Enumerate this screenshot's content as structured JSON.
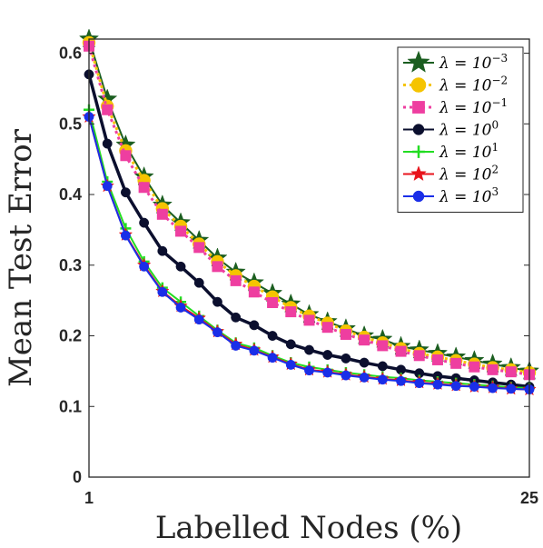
{
  "chart_data": {
    "type": "line",
    "xlabel": "Labelled Nodes (%)",
    "ylabel": "Mean Test Error",
    "xlim": [
      1,
      25
    ],
    "ylim": [
      0,
      0.62
    ],
    "xticks": [
      "1",
      "25"
    ],
    "yticks": [
      "0",
      "0.1",
      "0.2",
      "0.3",
      "0.4",
      "0.5",
      "0.6"
    ],
    "ytick_values": [
      0,
      0.1,
      0.2,
      0.3,
      0.4,
      0.5,
      0.6
    ],
    "x": [
      1,
      2,
      3,
      4,
      5,
      6,
      7,
      8,
      9,
      10,
      11,
      12,
      13,
      14,
      15,
      16,
      17,
      18,
      19,
      20,
      21,
      22,
      23,
      24,
      25
    ],
    "legend_position": "top-right",
    "series": [
      {
        "name": "λ = 10^-3",
        "label_base": "λ = 10",
        "label_exp": "−3",
        "color": "#1b5e20",
        "marker": "star",
        "line": "solid",
        "values": [
          0.62,
          0.535,
          0.47,
          0.425,
          0.385,
          0.36,
          0.335,
          0.31,
          0.29,
          0.275,
          0.26,
          0.245,
          0.23,
          0.22,
          0.21,
          0.2,
          0.195,
          0.185,
          0.18,
          0.175,
          0.17,
          0.165,
          0.16,
          0.155,
          0.15
        ]
      },
      {
        "name": "λ = 10^-2",
        "label_base": "λ = 10",
        "label_exp": "−2",
        "color": "#f5c400",
        "marker": "circle",
        "line": "dotted",
        "values": [
          0.615,
          0.525,
          0.462,
          0.42,
          0.38,
          0.355,
          0.33,
          0.305,
          0.285,
          0.27,
          0.255,
          0.24,
          0.228,
          0.218,
          0.207,
          0.198,
          0.19,
          0.182,
          0.175,
          0.17,
          0.165,
          0.16,
          0.155,
          0.152,
          0.148
        ]
      },
      {
        "name": "λ = 10^-1",
        "label_base": "λ = 10",
        "label_exp": "−1",
        "color": "#ee3ea0",
        "marker": "square",
        "line": "dotted",
        "values": [
          0.61,
          0.52,
          0.455,
          0.41,
          0.372,
          0.348,
          0.325,
          0.298,
          0.278,
          0.262,
          0.247,
          0.234,
          0.222,
          0.212,
          0.202,
          0.194,
          0.186,
          0.178,
          0.172,
          0.166,
          0.161,
          0.156,
          0.152,
          0.149,
          0.145
        ]
      },
      {
        "name": "λ = 10^0",
        "label_base": "λ = 10",
        "label_exp": "0",
        "color": "#0b0f2e",
        "marker": "circle",
        "line": "solid",
        "values": [
          0.57,
          0.472,
          0.403,
          0.36,
          0.32,
          0.298,
          0.275,
          0.248,
          0.226,
          0.215,
          0.2,
          0.188,
          0.18,
          0.173,
          0.168,
          0.162,
          0.157,
          0.152,
          0.147,
          0.143,
          0.14,
          0.137,
          0.134,
          0.131,
          0.128
        ]
      },
      {
        "name": "λ = 10^1",
        "label_base": "λ = 10",
        "label_exp": "1",
        "color": "#22dd22",
        "marker": "plus",
        "line": "solid",
        "values": [
          0.52,
          0.418,
          0.352,
          0.305,
          0.268,
          0.248,
          0.228,
          0.208,
          0.19,
          0.183,
          0.172,
          0.162,
          0.156,
          0.152,
          0.148,
          0.145,
          0.142,
          0.14,
          0.137,
          0.135,
          0.133,
          0.131,
          0.129,
          0.127,
          0.126
        ]
      },
      {
        "name": "λ = 10^2",
        "label_base": "λ = 10",
        "label_exp": "2",
        "color": "#e8141c",
        "marker": "star",
        "line": "solid",
        "values": [
          0.51,
          0.412,
          0.343,
          0.3,
          0.263,
          0.242,
          0.225,
          0.206,
          0.188,
          0.18,
          0.17,
          0.16,
          0.152,
          0.149,
          0.145,
          0.142,
          0.139,
          0.137,
          0.134,
          0.132,
          0.13,
          0.128,
          0.127,
          0.125,
          0.124
        ]
      },
      {
        "name": "λ = 10^3",
        "label_base": "λ = 10",
        "label_exp": "3",
        "color": "#1a2ee8",
        "marker": "circle",
        "line": "solid",
        "values": [
          0.51,
          0.412,
          0.342,
          0.298,
          0.262,
          0.24,
          0.223,
          0.205,
          0.186,
          0.179,
          0.169,
          0.159,
          0.151,
          0.148,
          0.144,
          0.141,
          0.138,
          0.136,
          0.133,
          0.131,
          0.129,
          0.128,
          0.126,
          0.125,
          0.124
        ]
      }
    ]
  }
}
